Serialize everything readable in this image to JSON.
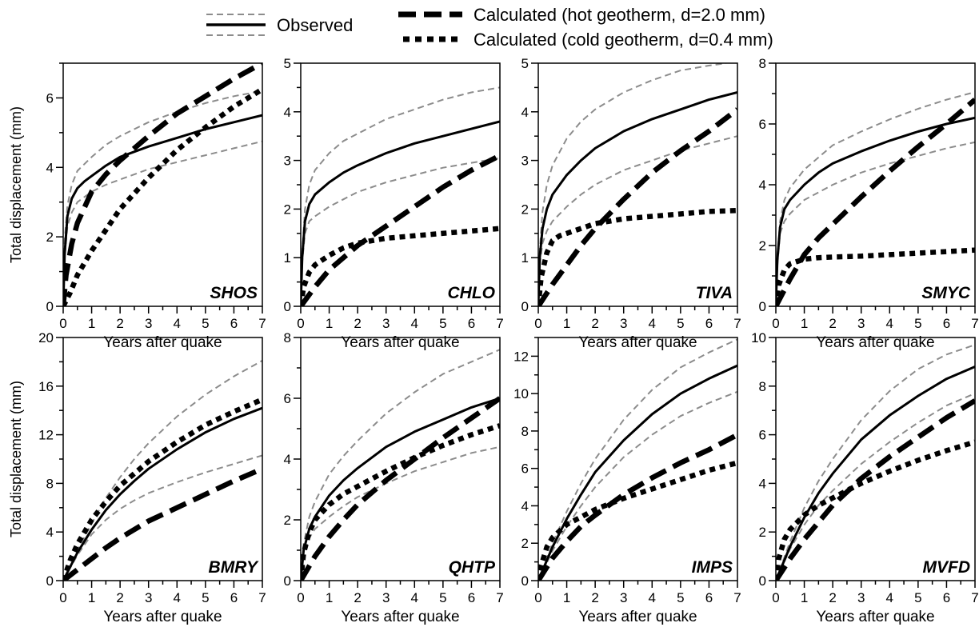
{
  "legend": {
    "observed": "Observed",
    "hot": "Calculated (hot geotherm, d=2.0 mm)",
    "cold": "Calculated (cold geotherm, d=0.4 mm)"
  },
  "colors": {
    "observed": "#000000",
    "bounds": "#8c8c8c",
    "hot": "#000000",
    "cold": "#000000"
  },
  "x_label": "Years after quake",
  "y_label": "Total displacement (mm)",
  "chart_data": [
    {
      "type": "line",
      "panel": "SHOS",
      "xlim": [
        0,
        7
      ],
      "ylim": [
        0,
        7
      ],
      "yticks": [
        0,
        2,
        4,
        6
      ],
      "ymajor": 2,
      "observed": {
        "x": [
          0,
          0.05,
          0.15,
          0.3,
          0.5,
          0.75,
          1,
          1.5,
          2,
          3,
          4,
          5,
          6,
          7
        ],
        "y": [
          0,
          1.5,
          2.6,
          3.1,
          3.4,
          3.6,
          3.75,
          4.05,
          4.3,
          4.6,
          4.85,
          5.1,
          5.3,
          5.5
        ]
      },
      "observed_upper": {
        "x": [
          0,
          0.05,
          0.15,
          0.3,
          0.5,
          1,
          1.5,
          2,
          3,
          4,
          5,
          6,
          7
        ],
        "y": [
          0,
          1.9,
          2.9,
          3.5,
          3.9,
          4.3,
          4.65,
          4.9,
          5.3,
          5.6,
          5.85,
          6.05,
          6.2
        ]
      },
      "observed_lower": {
        "x": [
          0,
          0.05,
          0.15,
          0.3,
          0.5,
          1,
          1.5,
          2,
          3,
          4,
          5,
          6,
          7
        ],
        "y": [
          0,
          1.4,
          2.3,
          2.7,
          3.0,
          3.3,
          3.5,
          3.65,
          3.95,
          4.15,
          4.35,
          4.55,
          4.75
        ]
      },
      "hot": {
        "x": [
          0,
          0.1,
          0.3,
          0.5,
          1,
          1.5,
          2,
          3,
          4,
          5,
          6,
          7
        ],
        "y": [
          0,
          0.9,
          1.8,
          2.4,
          3.3,
          3.8,
          4.2,
          4.9,
          5.55,
          6.05,
          6.55,
          7.0
        ]
      },
      "cold": {
        "x": [
          0,
          0.25,
          0.5,
          1,
          1.5,
          2,
          3,
          4,
          5,
          6,
          7
        ],
        "y": [
          0,
          0.4,
          0.9,
          1.6,
          2.2,
          2.8,
          3.7,
          4.5,
          5.15,
          5.75,
          6.25
        ]
      }
    },
    {
      "type": "line",
      "panel": "CHLO",
      "xlim": [
        0,
        7
      ],
      "ylim": [
        0,
        5
      ],
      "yticks": [
        0,
        1,
        2,
        3,
        4,
        5
      ],
      "ymajor": 1,
      "observed": {
        "x": [
          0,
          0.05,
          0.15,
          0.3,
          0.5,
          1,
          1.5,
          2,
          3,
          4,
          5,
          6,
          7
        ],
        "y": [
          0,
          1.0,
          1.75,
          2.1,
          2.3,
          2.55,
          2.75,
          2.9,
          3.15,
          3.35,
          3.5,
          3.65,
          3.8
        ]
      },
      "observed_upper": {
        "x": [
          0,
          0.05,
          0.15,
          0.3,
          0.5,
          1,
          1.5,
          2,
          3,
          4,
          5,
          6,
          7
        ],
        "y": [
          0,
          1.1,
          2.0,
          2.5,
          2.8,
          3.15,
          3.4,
          3.55,
          3.85,
          4.05,
          4.25,
          4.4,
          4.5
        ]
      },
      "observed_lower": {
        "x": [
          0,
          0.05,
          0.15,
          0.3,
          0.5,
          1,
          1.5,
          2,
          3,
          4,
          5,
          6,
          7
        ],
        "y": [
          0,
          0.9,
          1.5,
          1.75,
          1.85,
          2.05,
          2.2,
          2.35,
          2.55,
          2.7,
          2.85,
          2.95,
          3.05
        ]
      },
      "hot": {
        "x": [
          0,
          0.5,
          1,
          1.5,
          2,
          3,
          4,
          5,
          6,
          7
        ],
        "y": [
          0,
          0.4,
          0.75,
          1.0,
          1.25,
          1.65,
          2.05,
          2.45,
          2.8,
          3.1
        ]
      },
      "cold": {
        "x": [
          0,
          0.1,
          0.3,
          0.5,
          1,
          1.5,
          2,
          3,
          4,
          5,
          6,
          7
        ],
        "y": [
          0,
          0.4,
          0.7,
          0.85,
          1.05,
          1.2,
          1.3,
          1.4,
          1.45,
          1.5,
          1.55,
          1.6
        ]
      }
    },
    {
      "type": "line",
      "panel": "TIVA",
      "xlim": [
        0,
        7
      ],
      "ylim": [
        0,
        5
      ],
      "yticks": [
        0,
        1,
        2,
        3,
        4,
        5
      ],
      "ymajor": 1,
      "observed": {
        "x": [
          0,
          0.05,
          0.15,
          0.3,
          0.5,
          1,
          1.5,
          2,
          3,
          4,
          5,
          6,
          7
        ],
        "y": [
          0,
          1.0,
          1.6,
          2.0,
          2.3,
          2.7,
          3.0,
          3.25,
          3.6,
          3.85,
          4.05,
          4.25,
          4.4
        ]
      },
      "observed_upper": {
        "x": [
          0,
          0.05,
          0.15,
          0.3,
          0.5,
          1,
          1.5,
          2,
          3,
          4,
          5,
          6,
          6.6
        ],
        "y": [
          0,
          1.15,
          1.95,
          2.5,
          2.9,
          3.45,
          3.8,
          4.05,
          4.4,
          4.65,
          4.85,
          4.95,
          5.0
        ]
      },
      "observed_lower": {
        "x": [
          0,
          0.05,
          0.15,
          0.3,
          0.5,
          1,
          1.5,
          2,
          3,
          4,
          5,
          6,
          7
        ],
        "y": [
          0,
          0.85,
          1.3,
          1.55,
          1.75,
          2.05,
          2.3,
          2.5,
          2.8,
          3.0,
          3.2,
          3.35,
          3.5
        ]
      },
      "hot": {
        "x": [
          0,
          0.5,
          1,
          1.5,
          2,
          3,
          4,
          5,
          6,
          7
        ],
        "y": [
          0,
          0.45,
          0.85,
          1.25,
          1.6,
          2.2,
          2.75,
          3.2,
          3.6,
          4.05
        ]
      },
      "cold": {
        "x": [
          0,
          0.1,
          0.3,
          0.5,
          0.75,
          1,
          1.5,
          2,
          3,
          4,
          5,
          6,
          7
        ],
        "y": [
          0,
          0.6,
          1.1,
          1.35,
          1.45,
          1.5,
          1.6,
          1.7,
          1.8,
          1.85,
          1.9,
          1.95,
          1.97
        ]
      }
    },
    {
      "type": "line",
      "panel": "SMYC",
      "xlim": [
        0,
        7
      ],
      "ylim": [
        0,
        8
      ],
      "yticks": [
        0,
        2,
        4,
        6,
        8
      ],
      "ymajor": 2,
      "observed": {
        "x": [
          0,
          0.05,
          0.15,
          0.3,
          0.5,
          1,
          1.5,
          2,
          3,
          4,
          5,
          6,
          7
        ],
        "y": [
          0,
          1.5,
          2.6,
          3.2,
          3.5,
          4.0,
          4.4,
          4.7,
          5.1,
          5.45,
          5.75,
          6.0,
          6.2
        ]
      },
      "observed_upper": {
        "x": [
          0,
          0.05,
          0.15,
          0.3,
          0.5,
          1,
          1.5,
          2,
          3,
          4,
          5,
          6,
          7
        ],
        "y": [
          0,
          1.6,
          2.8,
          3.5,
          3.9,
          4.5,
          4.9,
          5.3,
          5.75,
          6.15,
          6.5,
          6.8,
          7.05
        ]
      },
      "observed_lower": {
        "x": [
          0,
          0.05,
          0.15,
          0.3,
          0.5,
          1,
          1.5,
          2,
          3,
          4,
          5,
          6,
          7
        ],
        "y": [
          0,
          1.3,
          2.4,
          2.8,
          3.05,
          3.5,
          3.75,
          4.0,
          4.4,
          4.7,
          4.95,
          5.2,
          5.4
        ]
      },
      "hot": {
        "x": [
          0,
          0.5,
          1,
          1.5,
          2,
          3,
          4,
          5,
          6,
          7
        ],
        "y": [
          0,
          0.9,
          1.7,
          2.25,
          2.7,
          3.6,
          4.45,
          5.25,
          6.0,
          6.8
        ]
      },
      "cold": {
        "x": [
          0,
          0.1,
          0.3,
          0.5,
          1,
          1.5,
          2,
          3,
          4,
          5,
          6,
          7
        ],
        "y": [
          0,
          0.7,
          1.2,
          1.4,
          1.55,
          1.6,
          1.62,
          1.65,
          1.7,
          1.75,
          1.8,
          1.85
        ]
      }
    },
    {
      "type": "line",
      "panel": "BMRY",
      "xlim": [
        0,
        7
      ],
      "ylim": [
        0,
        20
      ],
      "yticks": [
        0,
        4,
        8,
        12,
        16,
        20
      ],
      "ymajor": 4,
      "observed": {
        "x": [
          0,
          0.5,
          1,
          1.5,
          2,
          2.5,
          3,
          4,
          5,
          6,
          7
        ],
        "y": [
          0,
          2.3,
          4.2,
          5.8,
          7.1,
          8.2,
          9.2,
          10.8,
          12.2,
          13.3,
          14.2
        ]
      },
      "observed_upper": {
        "x": [
          0,
          0.5,
          1,
          1.5,
          2,
          2.5,
          3,
          4,
          5,
          6,
          7
        ],
        "y": [
          0,
          2.5,
          4.7,
          6.8,
          8.5,
          10.0,
          11.3,
          13.5,
          15.3,
          16.8,
          18.1
        ]
      },
      "observed_lower": {
        "x": [
          0,
          0.5,
          1,
          1.5,
          2,
          2.5,
          3,
          4,
          5,
          6,
          7
        ],
        "y": [
          0,
          2.1,
          3.8,
          5.0,
          5.9,
          6.6,
          7.2,
          8.1,
          8.9,
          9.6,
          10.3
        ]
      },
      "hot": {
        "x": [
          0,
          0.5,
          1,
          1.5,
          2,
          3,
          4,
          5,
          6,
          7
        ],
        "y": [
          0,
          0.9,
          1.8,
          2.7,
          3.5,
          4.9,
          6.0,
          7.1,
          8.2,
          9.2
        ]
      },
      "cold": {
        "x": [
          0,
          0.25,
          0.5,
          1,
          1.5,
          2,
          3,
          4,
          5,
          6,
          7
        ],
        "y": [
          0,
          1.7,
          3.0,
          5.0,
          6.5,
          7.8,
          9.8,
          11.4,
          12.8,
          13.9,
          14.9
        ]
      }
    },
    {
      "type": "line",
      "panel": "QHTP",
      "xlim": [
        0,
        7
      ],
      "ylim": [
        0,
        8
      ],
      "yticks": [
        0,
        2,
        4,
        6,
        8
      ],
      "ymajor": 2,
      "observed": {
        "x": [
          0,
          0.1,
          0.3,
          0.5,
          1,
          1.5,
          2,
          3,
          4,
          5,
          6,
          7
        ],
        "y": [
          0,
          1.0,
          1.7,
          2.1,
          2.8,
          3.3,
          3.7,
          4.4,
          4.9,
          5.3,
          5.7,
          6.0
        ]
      },
      "observed_upper": {
        "x": [
          0,
          0.1,
          0.3,
          0.5,
          1,
          1.5,
          2,
          3,
          4,
          5,
          6,
          7
        ],
        "y": [
          0,
          1.2,
          2.1,
          2.6,
          3.5,
          4.1,
          4.6,
          5.5,
          6.2,
          6.8,
          7.2,
          7.6
        ]
      },
      "observed_lower": {
        "x": [
          0,
          0.1,
          0.3,
          0.5,
          1,
          1.5,
          2,
          3,
          4,
          5,
          6,
          7
        ],
        "y": [
          0,
          0.9,
          1.4,
          1.7,
          2.1,
          2.45,
          2.75,
          3.2,
          3.6,
          3.9,
          4.2,
          4.4
        ]
      },
      "hot": {
        "x": [
          0,
          0.5,
          1,
          1.5,
          2,
          3,
          4,
          5,
          6,
          7
        ],
        "y": [
          0,
          0.8,
          1.45,
          2.0,
          2.5,
          3.3,
          4.0,
          4.7,
          5.35,
          6.0
        ]
      },
      "cold": {
        "x": [
          0,
          0.1,
          0.3,
          0.5,
          1,
          1.5,
          2,
          3,
          4,
          5,
          6,
          7
        ],
        "y": [
          0,
          0.9,
          1.6,
          2.0,
          2.5,
          2.85,
          3.1,
          3.6,
          4.05,
          4.45,
          4.8,
          5.1
        ]
      }
    },
    {
      "type": "line",
      "panel": "IMPS",
      "xlim": [
        0,
        7
      ],
      "ylim": [
        0,
        13
      ],
      "yticks": [
        0,
        2,
        4,
        6,
        8,
        10,
        12
      ],
      "ymajor": 2,
      "observed": {
        "x": [
          0,
          0.5,
          1,
          1.5,
          2,
          3,
          4,
          5,
          6,
          7
        ],
        "y": [
          0,
          1.8,
          3.3,
          4.6,
          5.8,
          7.5,
          8.9,
          10.0,
          10.8,
          11.5
        ]
      },
      "observed_upper": {
        "x": [
          0,
          0.5,
          1,
          1.5,
          2,
          3,
          4,
          5,
          6,
          7
        ],
        "y": [
          0,
          2.0,
          3.7,
          5.2,
          6.5,
          8.6,
          10.2,
          11.4,
          12.2,
          12.9
        ]
      },
      "observed_lower": {
        "x": [
          0,
          0.5,
          1,
          1.5,
          2,
          3,
          4,
          5,
          6,
          7
        ],
        "y": [
          0,
          1.6,
          2.9,
          4.0,
          5.0,
          6.6,
          7.8,
          8.8,
          9.5,
          10.1
        ]
      },
      "hot": {
        "x": [
          0,
          0.5,
          1,
          1.5,
          2,
          3,
          4,
          5,
          6,
          7
        ],
        "y": [
          0,
          1.2,
          2.1,
          2.9,
          3.5,
          4.6,
          5.5,
          6.3,
          7.0,
          7.8
        ]
      },
      "cold": {
        "x": [
          0,
          0.1,
          0.3,
          0.5,
          1,
          1.5,
          2,
          3,
          4,
          5,
          6,
          7
        ],
        "y": [
          0,
          0.8,
          1.8,
          2.3,
          3.0,
          3.4,
          3.8,
          4.4,
          4.9,
          5.4,
          5.9,
          6.3
        ]
      }
    },
    {
      "type": "line",
      "panel": "MVFD",
      "xlim": [
        0,
        7
      ],
      "ylim": [
        0,
        10
      ],
      "yticks": [
        0,
        2,
        4,
        6,
        8,
        10
      ],
      "ymajor": 2,
      "observed": {
        "x": [
          0,
          0.5,
          1,
          1.5,
          2,
          3,
          4,
          5,
          6,
          7
        ],
        "y": [
          0,
          1.4,
          2.6,
          3.6,
          4.4,
          5.8,
          6.8,
          7.6,
          8.3,
          8.8
        ]
      },
      "observed_upper": {
        "x": [
          0,
          0.5,
          1,
          1.5,
          2,
          3,
          4,
          5,
          6,
          7
        ],
        "y": [
          0,
          1.6,
          3.0,
          4.1,
          5.0,
          6.6,
          7.8,
          8.7,
          9.3,
          9.7
        ]
      },
      "observed_lower": {
        "x": [
          0,
          0.5,
          1,
          1.5,
          2,
          3,
          4,
          5,
          6,
          7
        ],
        "y": [
          0,
          1.3,
          2.3,
          3.1,
          3.7,
          4.8,
          5.7,
          6.5,
          7.2,
          7.7
        ]
      },
      "hot": {
        "x": [
          0,
          0.5,
          1,
          1.5,
          2,
          3,
          4,
          5,
          6,
          7
        ],
        "y": [
          0,
          0.9,
          1.7,
          2.4,
          3.1,
          4.2,
          5.1,
          5.9,
          6.7,
          7.4
        ]
      },
      "cold": {
        "x": [
          0,
          0.1,
          0.3,
          0.5,
          1,
          1.5,
          2,
          3,
          4,
          5,
          6,
          7
        ],
        "y": [
          0,
          0.9,
          1.7,
          2.1,
          2.7,
          3.1,
          3.4,
          4.0,
          4.5,
          4.95,
          5.35,
          5.7
        ]
      }
    }
  ]
}
